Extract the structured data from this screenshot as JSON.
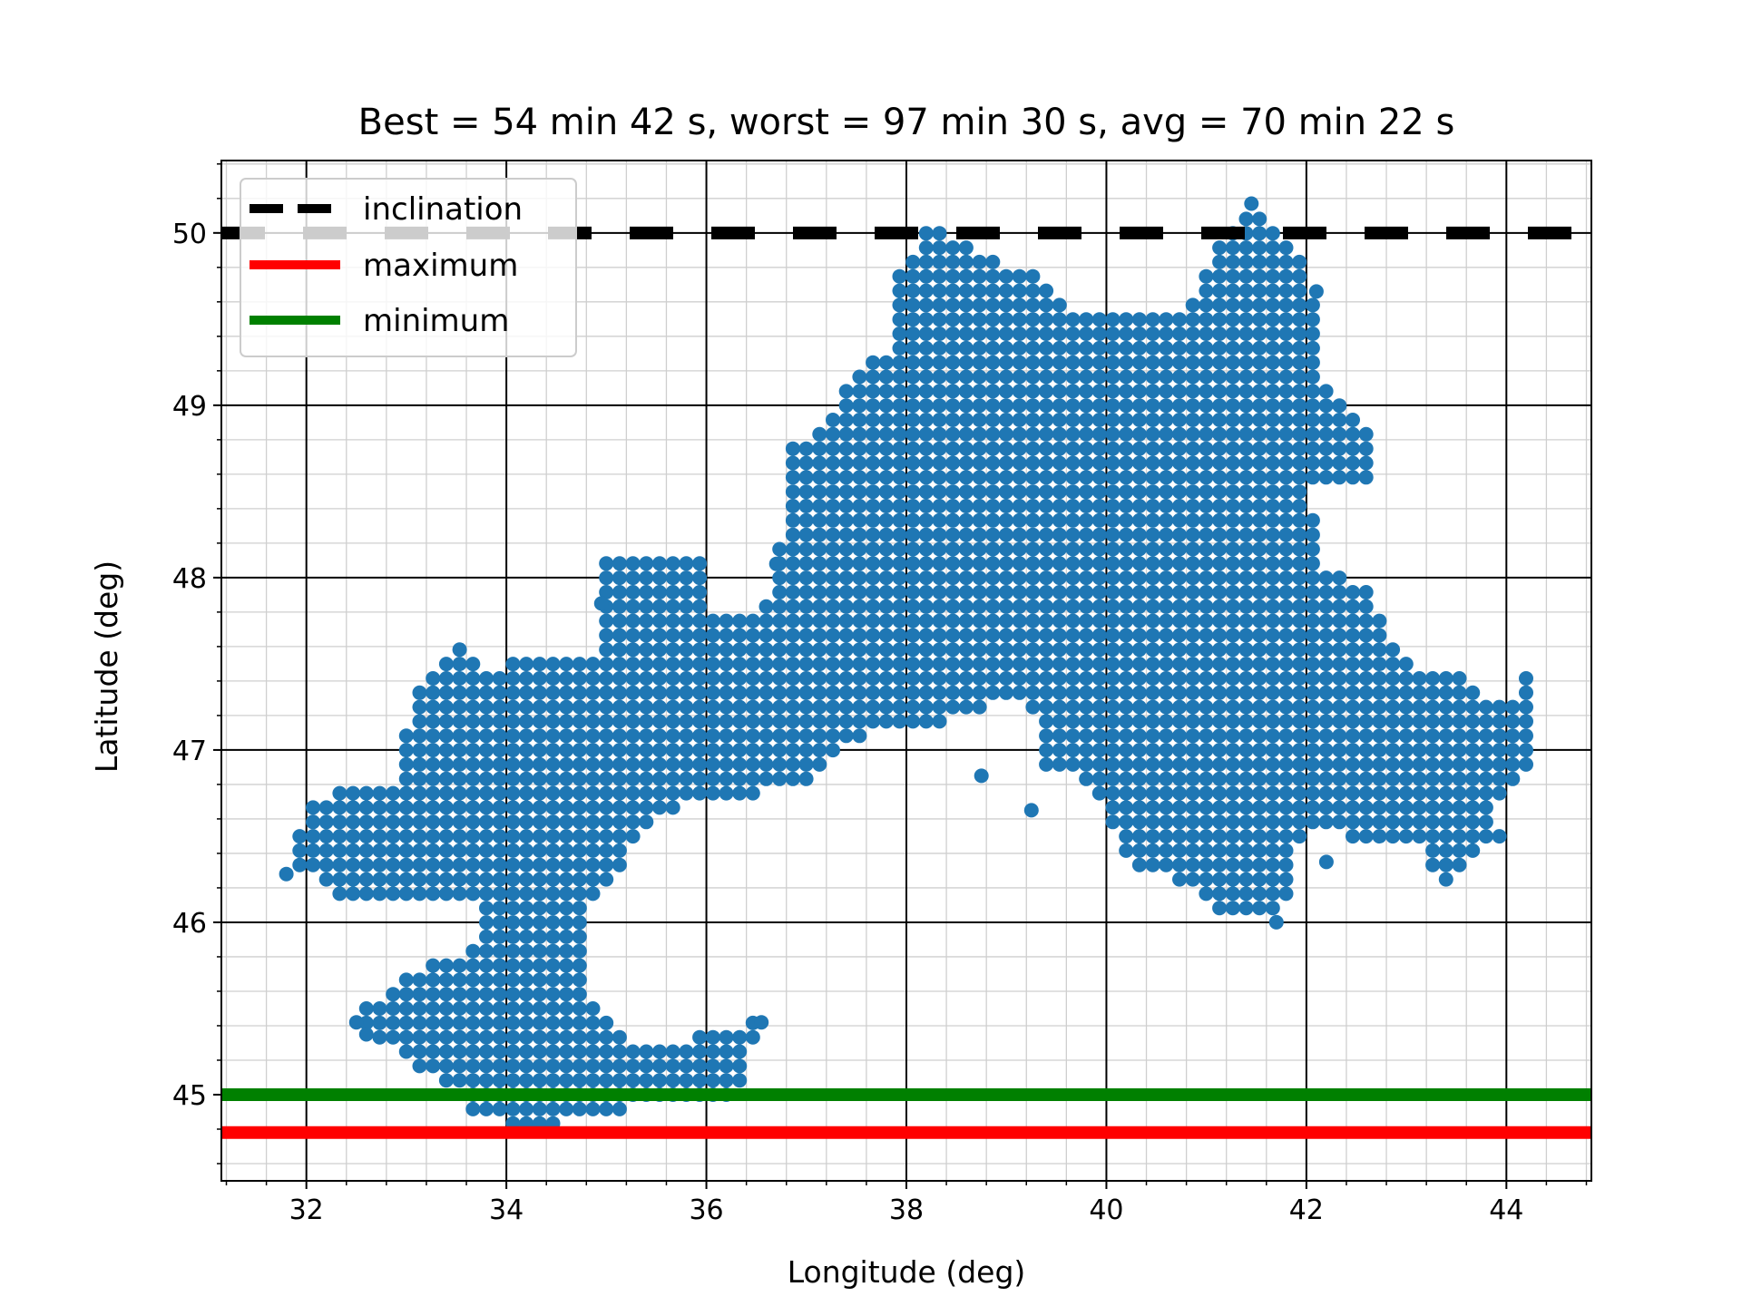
{
  "chart_data": {
    "type": "scatter",
    "title": "Best = 54 min 42 s, worst = 97 min 30 s, avg = 70 min 22 s",
    "xlabel": "Longitude (deg)",
    "ylabel": "Latitude (deg)",
    "xlim": [
      31.15,
      44.85
    ],
    "ylim": [
      44.5,
      50.42
    ],
    "xticks": [
      32,
      34,
      36,
      38,
      40,
      42,
      44
    ],
    "yticks": [
      45,
      46,
      47,
      48,
      49,
      50
    ],
    "xtick_labels": [
      "32",
      "34",
      "36",
      "38",
      "40",
      "42",
      "44"
    ],
    "ytick_labels": [
      "45",
      "46",
      "47",
      "48",
      "49",
      "50"
    ],
    "major_grid": true,
    "minor_grid": true,
    "point_color": "#1f77b4",
    "grid_step": {
      "lon": 0.1333,
      "lat": 0.0833
    },
    "region_polygon": [
      [
        31.8,
        46.28
      ],
      [
        32.05,
        46.7
      ],
      [
        32.4,
        46.8
      ],
      [
        32.9,
        46.78
      ],
      [
        33.1,
        47.4
      ],
      [
        33.55,
        47.6
      ],
      [
        33.85,
        47.45
      ],
      [
        34.2,
        47.55
      ],
      [
        34.9,
        47.55
      ],
      [
        35.0,
        48.1
      ],
      [
        35.95,
        48.1
      ],
      [
        36.05,
        47.78
      ],
      [
        36.55,
        47.8
      ],
      [
        36.7,
        48.1
      ],
      [
        36.85,
        48.75
      ],
      [
        37.25,
        48.9
      ],
      [
        37.45,
        49.2
      ],
      [
        37.8,
        49.3
      ],
      [
        37.9,
        49.75
      ],
      [
        38.25,
        50.05
      ],
      [
        38.7,
        49.9
      ],
      [
        39.3,
        49.75
      ],
      [
        39.65,
        49.5
      ],
      [
        40.8,
        49.55
      ],
      [
        41.05,
        49.9
      ],
      [
        41.45,
        50.15
      ],
      [
        41.75,
        49.95
      ],
      [
        42.05,
        49.8
      ],
      [
        42.1,
        49.1
      ],
      [
        42.3,
        49.08
      ],
      [
        42.62,
        48.9
      ],
      [
        42.62,
        48.58
      ],
      [
        42.05,
        48.5
      ],
      [
        42.1,
        48.05
      ],
      [
        42.6,
        47.95
      ],
      [
        42.9,
        47.55
      ],
      [
        43.1,
        47.45
      ],
      [
        43.5,
        47.45
      ],
      [
        43.75,
        47.35
      ],
      [
        44.0,
        47.25
      ],
      [
        44.22,
        47.5
      ],
      [
        44.22,
        46.88
      ],
      [
        43.9,
        46.7
      ],
      [
        43.95,
        46.5
      ],
      [
        43.6,
        46.35
      ],
      [
        43.45,
        46.2
      ],
      [
        43.25,
        46.3
      ],
      [
        43.1,
        46.45
      ],
      [
        42.6,
        46.45
      ],
      [
        42.2,
        46.55
      ],
      [
        41.95,
        46.5
      ],
      [
        41.75,
        46.05
      ],
      [
        41.25,
        46.0
      ],
      [
        41.0,
        46.15
      ],
      [
        40.6,
        46.25
      ],
      [
        40.2,
        46.35
      ],
      [
        40.05,
        46.58
      ],
      [
        39.85,
        46.8
      ],
      [
        39.3,
        46.9
      ],
      [
        39.15,
        47.18
      ],
      [
        38.55,
        47.22
      ],
      [
        38.3,
        47.1
      ],
      [
        37.6,
        47.1
      ],
      [
        37.0,
        46.8
      ],
      [
        36.6,
        46.75
      ],
      [
        36.05,
        46.7
      ],
      [
        35.6,
        46.65
      ],
      [
        35.3,
        46.5
      ],
      [
        35.0,
        46.2
      ],
      [
        34.8,
        46.05
      ],
      [
        34.75,
        45.75
      ],
      [
        34.95,
        45.45
      ],
      [
        35.25,
        45.3
      ],
      [
        35.75,
        45.3
      ],
      [
        36.05,
        45.4
      ],
      [
        36.55,
        45.42
      ],
      [
        36.3,
        45.0
      ],
      [
        35.25,
        44.95
      ],
      [
        34.9,
        44.85
      ],
      [
        34.3,
        44.82
      ],
      [
        33.6,
        44.85
      ],
      [
        33.55,
        45.0
      ],
      [
        33.1,
        45.15
      ],
      [
        32.65,
        45.35
      ],
      [
        32.45,
        45.45
      ],
      [
        33.0,
        45.7
      ],
      [
        33.4,
        45.8
      ],
      [
        33.65,
        45.82
      ],
      [
        33.7,
        46.1
      ],
      [
        33.2,
        46.15
      ],
      [
        32.3,
        46.15
      ],
      [
        32.0,
        46.3
      ]
    ],
    "hole_polygon": [
      [
        38.6,
        47.2
      ],
      [
        39.05,
        47.3
      ],
      [
        39.3,
        47.15
      ],
      [
        39.35,
        46.85
      ],
      [
        39.1,
        46.7
      ],
      [
        38.95,
        46.55
      ],
      [
        38.6,
        46.6
      ],
      [
        38.7,
        46.9
      ]
    ],
    "extra_points": [
      [
        31.8,
        46.28
      ],
      [
        32.5,
        45.42
      ],
      [
        32.6,
        45.35
      ],
      [
        36.55,
        45.42
      ],
      [
        41.45,
        50.17
      ],
      [
        42.1,
        49.66
      ],
      [
        42.2,
        46.35
      ],
      [
        41.7,
        46.0
      ],
      [
        39.25,
        46.65
      ],
      [
        38.75,
        46.85
      ],
      [
        34.95,
        47.85
      ],
      [
        36.7,
        48.08
      ]
    ],
    "series": [
      {
        "name": "inclination",
        "kind": "hline",
        "y": 50.0,
        "color": "#000000",
        "style": "dashed"
      },
      {
        "name": "maximum",
        "kind": "hline",
        "y": 44.78,
        "color": "#ff0000",
        "style": "solid"
      },
      {
        "name": "minimum",
        "kind": "hline",
        "y": 45.0,
        "color": "#008000",
        "style": "solid"
      }
    ],
    "legend_placement": "upper-left"
  }
}
